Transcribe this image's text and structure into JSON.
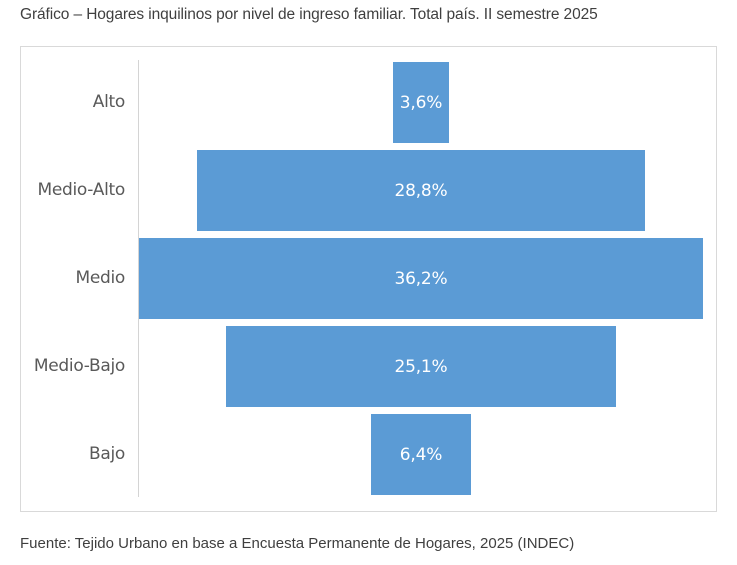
{
  "title": "Gráfico – Hogares inquilinos por nivel de ingreso familiar. Total país. II semestre 2025",
  "source": "Fuente: Tejido Urbano en base a Encuesta Permanente de Hogares, 2025 (INDEC)",
  "colors": {
    "bar": "#5b9bd5",
    "label": "#595959",
    "bar_text": "#ffffff"
  },
  "chart_data": {
    "type": "bar",
    "orientation": "horizontal-centered (funnel/pyramid)",
    "title": "Gráfico – Hogares inquilinos por nivel de ingreso familiar. Total país. II semestre 2025",
    "categories": [
      "Alto",
      "Medio-Alto",
      "Medio",
      "Medio-Bajo",
      "Bajo"
    ],
    "values": [
      3.6,
      28.8,
      36.2,
      25.1,
      6.4
    ],
    "data_labels": [
      "3,6%",
      "28,8%",
      "36,2%",
      "25,1%",
      "6,4%"
    ],
    "unit": "%",
    "xlabel": "",
    "ylabel": "",
    "grid": false,
    "legend": null,
    "source": "Fuente: Tejido Urbano en base a Encuesta Permanente de Hogares, 2025 (INDEC)"
  }
}
